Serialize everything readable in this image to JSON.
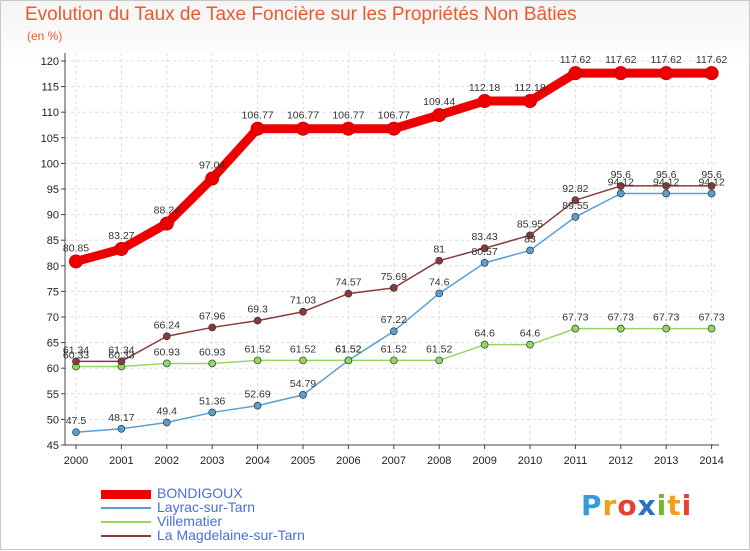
{
  "chart_data": {
    "type": "line",
    "title": "Evolution du Taux de Taxe Foncière sur les Propriétés Non Bâties",
    "ylabel": "(en %)",
    "x": [
      "2000",
      "2001",
      "2002",
      "2003",
      "2004",
      "2005",
      "2006",
      "2007",
      "2008",
      "2009",
      "2010",
      "2011",
      "2012",
      "2013",
      "2014"
    ],
    "ylim": [
      45,
      120
    ],
    "yticks": [
      "45",
      "50",
      "55",
      "60",
      "65",
      "70",
      "75",
      "80",
      "85",
      "90",
      "95",
      "100",
      "105",
      "110",
      "115",
      "120"
    ],
    "grid": true,
    "legend_position": "bottom-left",
    "series": [
      {
        "name": "BONDIGOUX",
        "color": "#ee0000",
        "values": [
          80.85,
          83.27,
          88.24,
          97.04,
          106.77,
          106.77,
          106.77,
          106.77,
          109.44,
          112.18,
          112.18,
          117.62,
          117.62,
          117.62,
          117.62
        ],
        "labels": [
          "80.85",
          "83.27",
          "88.24",
          "97.04",
          "106.77",
          "106.77",
          "106.77",
          "106.77",
          "109.44",
          "112.18",
          "112.18",
          "117.62",
          "117.62",
          "117.62",
          "117.62"
        ]
      },
      {
        "name": "Layrac-sur-Tarn",
        "color": "#5a9fd4",
        "values": [
          47.5,
          48.17,
          49.4,
          51.36,
          52.69,
          54.79,
          61.52,
          67.22,
          74.6,
          80.57,
          83,
          89.55,
          94.12,
          94.12,
          94.12
        ],
        "labels": [
          "47.5",
          "48.17",
          "49.4",
          "51.36",
          "52.69",
          "54.79",
          "61.52",
          "67.22",
          "74.6",
          "80.57",
          "83",
          "89.55",
          "94.12",
          "94.12",
          "94.12"
        ]
      },
      {
        "name": "Villematier",
        "color": "#90d860",
        "values": [
          60.33,
          60.33,
          60.93,
          60.93,
          61.52,
          61.52,
          61.52,
          61.52,
          61.52,
          64.6,
          64.6,
          67.73,
          67.73,
          67.73,
          67.73
        ],
        "labels": [
          "60.33",
          "60.33",
          "60.93",
          "60.93",
          "61.52",
          "61.52",
          "61.52",
          "61.52",
          "61.52",
          "64.6",
          "64.6",
          "67.73",
          "67.73",
          "67.73",
          "67.73"
        ]
      },
      {
        "name": "La Magdelaine-sur-Tarn",
        "color": "#8b3a3a",
        "values": [
          61.34,
          61.34,
          66.24,
          67.96,
          69.3,
          71.03,
          74.57,
          75.69,
          81,
          83.43,
          85.95,
          92.82,
          95.6,
          95.6,
          95.6
        ],
        "labels": [
          "61.34",
          "61.34",
          "66.24",
          "67.96",
          "69.3",
          "71.03",
          "74.57",
          "75.69",
          "81",
          "83.43",
          "85.95",
          "92.82",
          "95.6",
          "95.6",
          "95.6"
        ]
      }
    ]
  },
  "logo": {
    "text": "Proxiti",
    "letters": [
      "P",
      "r",
      "o",
      "x",
      "i",
      "t",
      "i"
    ],
    "colors": [
      "#3a9ad9",
      "#f0a020",
      "#e84030",
      "#2a6fc0",
      "#70b830",
      "#f0a020",
      "#e84030"
    ]
  }
}
